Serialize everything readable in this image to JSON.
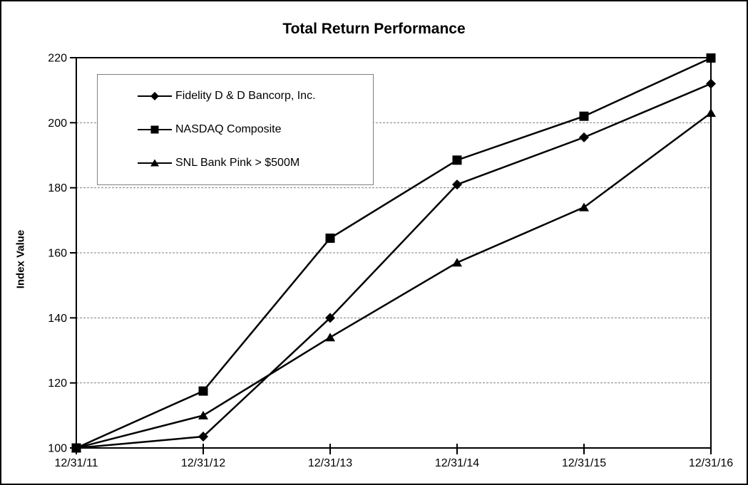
{
  "title": "Total Return Performance",
  "y_axis_label": "Index Value",
  "colors": {
    "series": "#000000",
    "grid": "#808080",
    "frame": "#000000",
    "legend_border": "#808080",
    "background": "#ffffff"
  },
  "chart_data": {
    "type": "line",
    "title": "Total Return Performance",
    "xlabel": "",
    "ylabel": "Index Value",
    "categories": [
      "12/31/11",
      "12/31/12",
      "12/31/13",
      "12/31/14",
      "12/31/15",
      "12/31/16"
    ],
    "series": [
      {
        "name": "Fidelity D & D Bancorp, Inc.",
        "marker": "diamond",
        "values": [
          100,
          103.5,
          140,
          181,
          195.5,
          212
        ]
      },
      {
        "name": "NASDAQ Composite",
        "marker": "square",
        "values": [
          100,
          117.5,
          164.5,
          188.5,
          202,
          219.9
        ]
      },
      {
        "name": "SNL Bank Pink > $500M",
        "marker": "triangle",
        "values": [
          100,
          110,
          134,
          157,
          174,
          203
        ]
      }
    ],
    "y_ticks": [
      100,
      120,
      140,
      160,
      180,
      200,
      220
    ],
    "ylim": [
      100,
      220
    ],
    "grid": "horizontal-dashed",
    "legend_position": "top-left-inside"
  }
}
